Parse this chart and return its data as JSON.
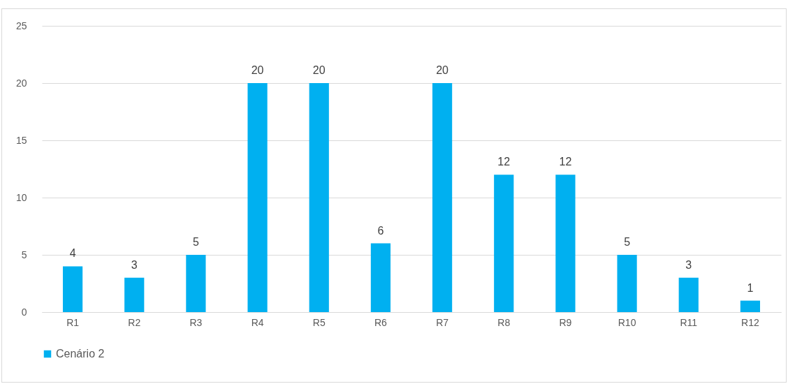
{
  "chart_data": {
    "type": "bar",
    "categories": [
      "R1",
      "R2",
      "R3",
      "R4",
      "R5",
      "R6",
      "R7",
      "R8",
      "R9",
      "R10",
      "R11",
      "R12"
    ],
    "series": [
      {
        "name": "Cenário 2",
        "color": "#00b0f0",
        "values": [
          4,
          3,
          5,
          20,
          20,
          6,
          20,
          12,
          12,
          5,
          3,
          1
        ]
      }
    ],
    "ylim": [
      0,
      25
    ],
    "yticks": [
      0,
      5,
      10,
      15,
      20,
      25
    ],
    "grid": "y",
    "legend": "bottom",
    "data_labels": true
  }
}
